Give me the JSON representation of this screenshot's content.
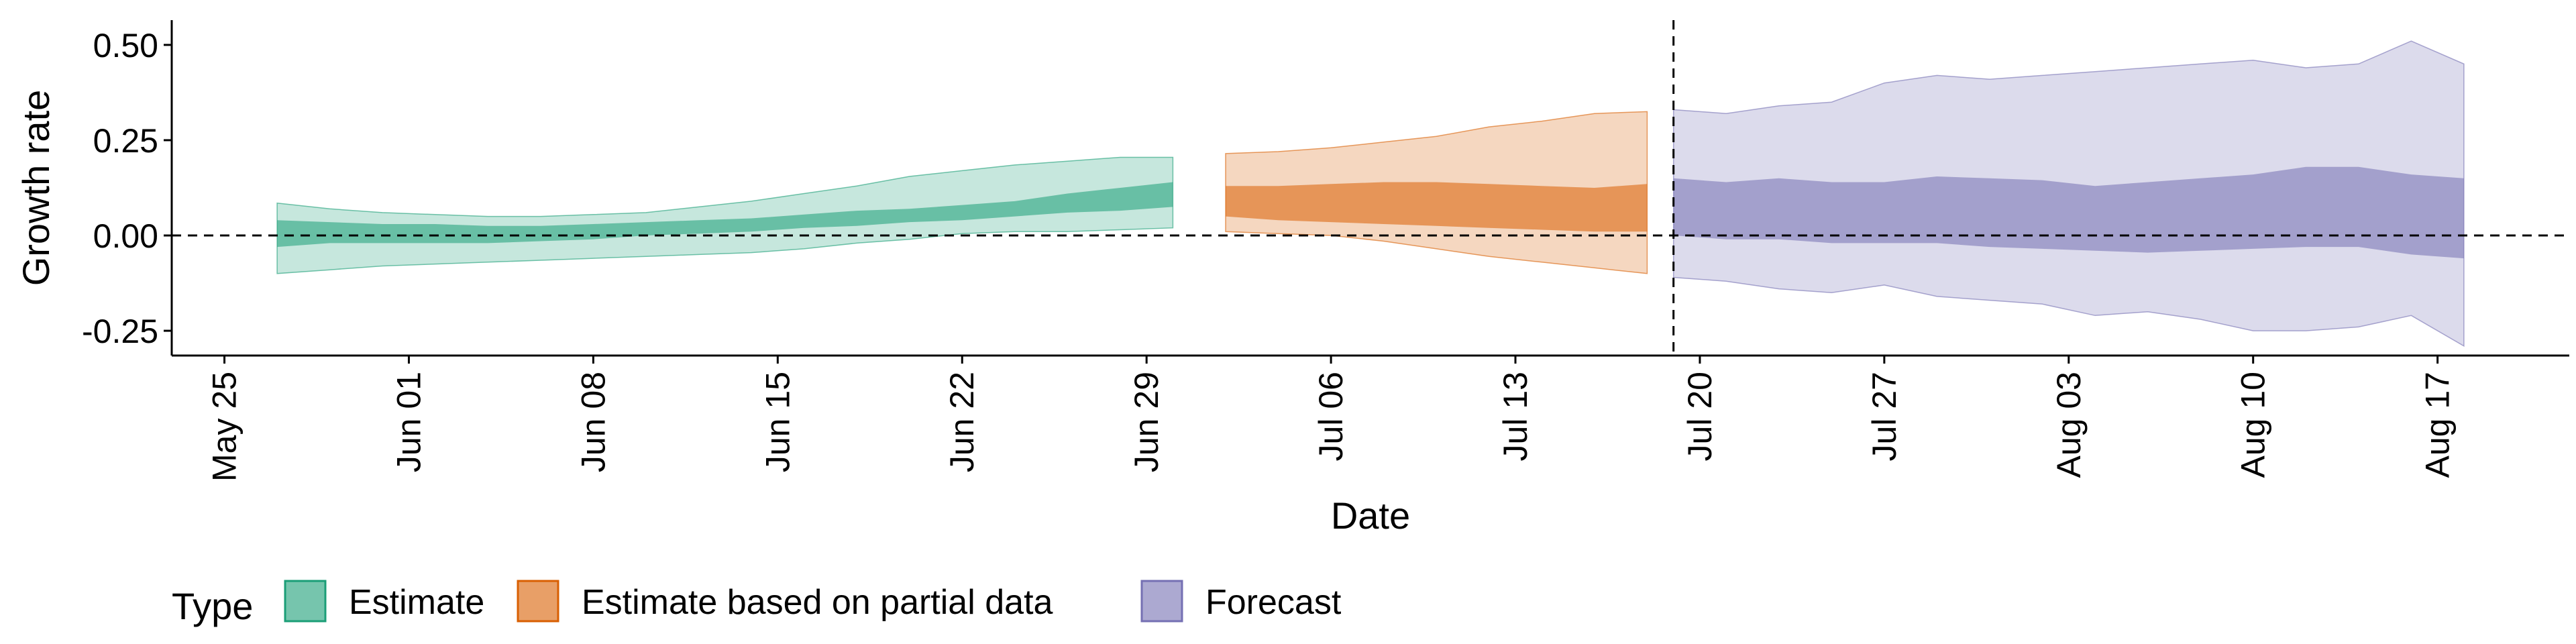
{
  "chart_data": {
    "type": "area",
    "xlabel": "Date",
    "ylabel": "Growth rate",
    "legend_title": "Type",
    "legend_position": "bottom-left",
    "grid": false,
    "xlim": [
      "2020-05-23",
      "2020-08-22"
    ],
    "ylim": [
      -0.315,
      0.565
    ],
    "y_ticks": [
      {
        "value": 0.5,
        "label": "0.50"
      },
      {
        "value": 0.25,
        "label": "0.25"
      },
      {
        "value": 0.0,
        "label": "0.00"
      },
      {
        "value": -0.25,
        "label": "-0.25"
      }
    ],
    "x_ticks": [
      {
        "date": "2020-05-25",
        "label": "May 25"
      },
      {
        "date": "2020-06-01",
        "label": "Jun 01"
      },
      {
        "date": "2020-06-08",
        "label": "Jun 08"
      },
      {
        "date": "2020-06-15",
        "label": "Jun 15"
      },
      {
        "date": "2020-06-22",
        "label": "Jun 22"
      },
      {
        "date": "2020-06-29",
        "label": "Jun 29"
      },
      {
        "date": "2020-07-06",
        "label": "Jul 06"
      },
      {
        "date": "2020-07-13",
        "label": "Jul 13"
      },
      {
        "date": "2020-07-20",
        "label": "Jul 20"
      },
      {
        "date": "2020-07-27",
        "label": "Jul 27"
      },
      {
        "date": "2020-08-03",
        "label": "Aug 03"
      },
      {
        "date": "2020-08-10",
        "label": "Aug 10"
      },
      {
        "date": "2020-08-17",
        "label": "Aug 17"
      }
    ],
    "reference_lines": [
      {
        "axis": "y",
        "value": 0,
        "style": "dashed"
      },
      {
        "axis": "x",
        "value": "2020-07-19",
        "style": "dashed"
      }
    ],
    "series": [
      {
        "name": "Estimate",
        "color": "#1b9e77",
        "x": [
          "2020-05-27",
          "2020-05-29",
          "2020-05-31",
          "2020-06-02",
          "2020-06-04",
          "2020-06-06",
          "2020-06-08",
          "2020-06-10",
          "2020-06-12",
          "2020-06-14",
          "2020-06-16",
          "2020-06-18",
          "2020-06-20",
          "2020-06-22",
          "2020-06-24",
          "2020-06-26",
          "2020-06-28",
          "2020-06-30"
        ],
        "lower_90": [
          -0.1,
          -0.09,
          -0.08,
          -0.075,
          -0.07,
          -0.065,
          -0.06,
          -0.055,
          -0.05,
          -0.045,
          -0.035,
          -0.02,
          -0.01,
          0.005,
          0.01,
          0.01,
          0.015,
          0.02
        ],
        "lower_50": [
          -0.03,
          -0.02,
          -0.02,
          -0.02,
          -0.02,
          -0.015,
          -0.01,
          0.0,
          0.005,
          0.01,
          0.02,
          0.025,
          0.035,
          0.04,
          0.05,
          0.06,
          0.065,
          0.075
        ],
        "upper_50": [
          0.04,
          0.035,
          0.03,
          0.03,
          0.025,
          0.025,
          0.03,
          0.035,
          0.04,
          0.045,
          0.055,
          0.065,
          0.07,
          0.08,
          0.09,
          0.11,
          0.125,
          0.14
        ],
        "upper_90": [
          0.085,
          0.07,
          0.06,
          0.055,
          0.05,
          0.05,
          0.055,
          0.06,
          0.075,
          0.09,
          0.11,
          0.13,
          0.155,
          0.17,
          0.185,
          0.195,
          0.205,
          0.205
        ]
      },
      {
        "name": "Estimate based on partial data",
        "color": "#d95f02",
        "x": [
          "2020-07-02",
          "2020-07-04",
          "2020-07-06",
          "2020-07-08",
          "2020-07-10",
          "2020-07-12",
          "2020-07-14",
          "2020-07-16",
          "2020-07-18"
        ],
        "lower_90": [
          0.01,
          0.005,
          0.0,
          -0.015,
          -0.035,
          -0.055,
          -0.07,
          -0.085,
          -0.1
        ],
        "lower_50": [
          0.05,
          0.04,
          0.035,
          0.03,
          0.025,
          0.02,
          0.015,
          0.01,
          0.01
        ],
        "upper_50": [
          0.13,
          0.13,
          0.135,
          0.14,
          0.14,
          0.135,
          0.13,
          0.125,
          0.135
        ],
        "upper_90": [
          0.215,
          0.22,
          0.23,
          0.245,
          0.26,
          0.285,
          0.3,
          0.32,
          0.325
        ]
      },
      {
        "name": "Forecast",
        "color": "#7570b3",
        "x": [
          "2020-07-19",
          "2020-07-21",
          "2020-07-23",
          "2020-07-25",
          "2020-07-27",
          "2020-07-29",
          "2020-07-31",
          "2020-08-02",
          "2020-08-04",
          "2020-08-06",
          "2020-08-08",
          "2020-08-10",
          "2020-08-12",
          "2020-08-14",
          "2020-08-16",
          "2020-08-18"
        ],
        "lower_90": [
          -0.11,
          -0.12,
          -0.14,
          -0.15,
          -0.13,
          -0.16,
          -0.17,
          -0.18,
          -0.21,
          -0.2,
          -0.22,
          -0.25,
          -0.25,
          -0.24,
          -0.21,
          -0.29
        ],
        "lower_50": [
          0.0,
          -0.01,
          -0.01,
          -0.02,
          -0.02,
          -0.02,
          -0.03,
          -0.035,
          -0.04,
          -0.045,
          -0.04,
          -0.035,
          -0.03,
          -0.03,
          -0.05,
          -0.06
        ],
        "upper_50": [
          0.15,
          0.14,
          0.15,
          0.14,
          0.14,
          0.155,
          0.15,
          0.145,
          0.13,
          0.14,
          0.15,
          0.16,
          0.18,
          0.18,
          0.16,
          0.15
        ],
        "upper_90": [
          0.33,
          0.32,
          0.34,
          0.35,
          0.4,
          0.42,
          0.41,
          0.42,
          0.43,
          0.44,
          0.45,
          0.46,
          0.44,
          0.45,
          0.51,
          0.45
        ]
      }
    ]
  }
}
